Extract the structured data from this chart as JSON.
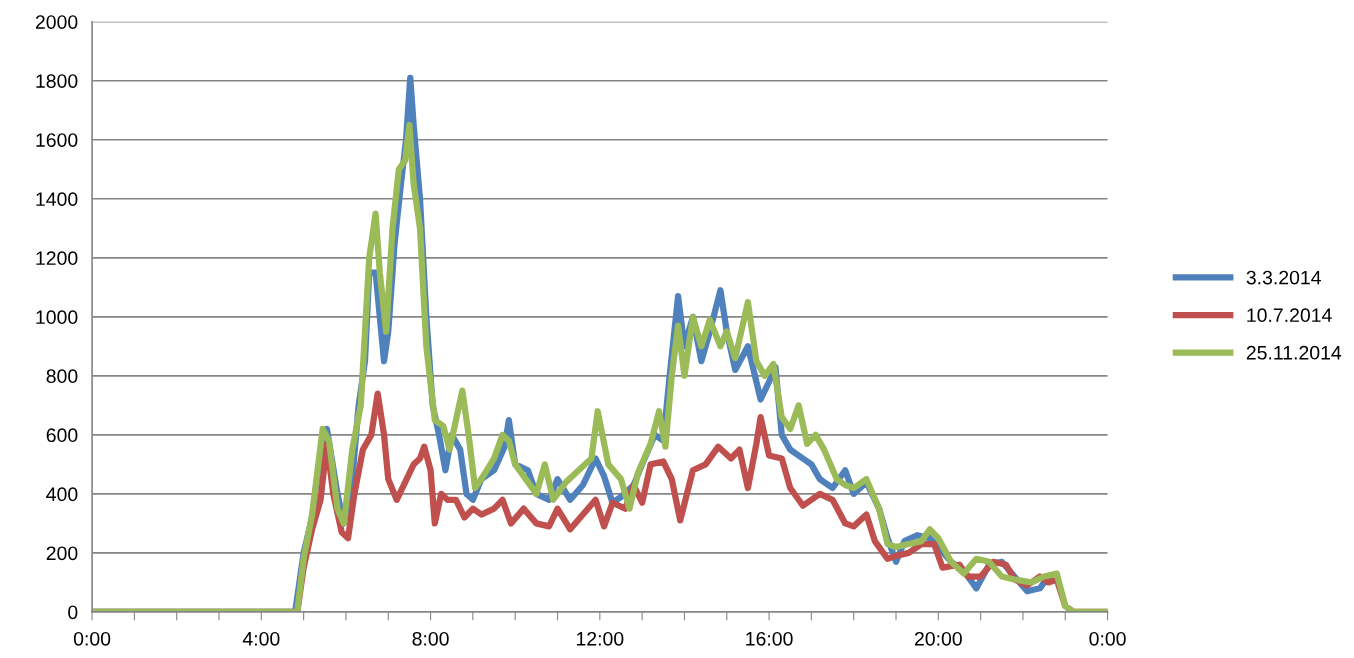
{
  "chart_data": {
    "type": "line",
    "xlim": [
      0,
      24
    ],
    "ylim": [
      0,
      2000
    ],
    "xticks": [
      {
        "value": 0,
        "label": "0:00"
      },
      {
        "value": 1,
        "label": null
      },
      {
        "value": 2,
        "label": null
      },
      {
        "value": 3,
        "label": null
      },
      {
        "value": 4,
        "label": "4:00"
      },
      {
        "value": 5,
        "label": null
      },
      {
        "value": 6,
        "label": null
      },
      {
        "value": 7,
        "label": null
      },
      {
        "value": 8,
        "label": "8:00"
      },
      {
        "value": 9,
        "label": null
      },
      {
        "value": 10,
        "label": null
      },
      {
        "value": 11,
        "label": null
      },
      {
        "value": 12,
        "label": "12:00"
      },
      {
        "value": 13,
        "label": null
      },
      {
        "value": 14,
        "label": null
      },
      {
        "value": 15,
        "label": null
      },
      {
        "value": 16,
        "label": "16:00"
      },
      {
        "value": 17,
        "label": null
      },
      {
        "value": 18,
        "label": null
      },
      {
        "value": 19,
        "label": null
      },
      {
        "value": 20,
        "label": "20:00"
      },
      {
        "value": 21,
        "label": null
      },
      {
        "value": 22,
        "label": null
      },
      {
        "value": 23,
        "label": null
      },
      {
        "value": 24,
        "label": "0:00"
      }
    ],
    "yticks": [
      0,
      200,
      400,
      600,
      800,
      1000,
      1200,
      1400,
      1600,
      1800,
      2000
    ],
    "grid": "y",
    "legend": "right",
    "marker": "none",
    "line_style": "solid",
    "series": [
      {
        "name": "3.3.2014",
        "color": "#4f81bd",
        "x": [
          0,
          4.8,
          5.0,
          5.2,
          5.45,
          5.55,
          5.8,
          5.95,
          6.15,
          6.3,
          6.45,
          6.55,
          6.7,
          6.8,
          6.9,
          7.0,
          7.15,
          7.3,
          7.42,
          7.52,
          7.6,
          7.75,
          7.9,
          8.05,
          8.2,
          8.35,
          8.5,
          8.7,
          8.85,
          9.0,
          9.2,
          9.5,
          9.75,
          9.85,
          10.0,
          10.3,
          10.5,
          10.8,
          11.0,
          11.3,
          11.6,
          11.9,
          12.1,
          12.3,
          12.5,
          12.8,
          13.0,
          13.3,
          13.5,
          13.65,
          13.85,
          14.0,
          14.2,
          14.4,
          14.6,
          14.85,
          15.0,
          15.2,
          15.5,
          15.8,
          16.0,
          16.15,
          16.3,
          16.5,
          16.8,
          17.0,
          17.2,
          17.5,
          17.8,
          18.0,
          18.3,
          18.6,
          18.8,
          19.0,
          19.2,
          19.5,
          19.8,
          20.0,
          20.3,
          20.6,
          20.9,
          21.2,
          21.5,
          21.8,
          22.1,
          22.4,
          22.6,
          22.8
        ],
        "values": [
          0,
          0,
          200,
          320,
          600,
          620,
          400,
          300,
          450,
          700,
          850,
          1150,
          1150,
          1000,
          850,
          950,
          1250,
          1450,
          1600,
          1810,
          1650,
          1400,
          1000,
          700,
          600,
          480,
          600,
          550,
          400,
          380,
          450,
          480,
          560,
          650,
          500,
          480,
          400,
          380,
          450,
          380,
          430,
          520,
          460,
          370,
          390,
          430,
          500,
          600,
          580,
          800,
          1070,
          900,
          1000,
          850,
          950,
          1090,
          950,
          820,
          900,
          720,
          780,
          830,
          600,
          550,
          520,
          500,
          450,
          420,
          480,
          400,
          440,
          350,
          250,
          170,
          240,
          260,
          250,
          220,
          170,
          140,
          80,
          160,
          170,
          120,
          70,
          80,
          120,
          120
        ]
      },
      {
        "name": "10.7.2014",
        "color": "#c0504d",
        "x": [
          0,
          4.85,
          5.0,
          5.2,
          5.4,
          5.55,
          5.7,
          5.9,
          6.05,
          6.2,
          6.4,
          6.6,
          6.75,
          6.9,
          7.0,
          7.2,
          7.4,
          7.6,
          7.75,
          7.85,
          8.0,
          8.1,
          8.25,
          8.4,
          8.6,
          8.8,
          9.0,
          9.2,
          9.5,
          9.7,
          9.9,
          10.2,
          10.5,
          10.8,
          11.0,
          11.3,
          11.6,
          11.9,
          12.1,
          12.3,
          12.6,
          12.8,
          13.0,
          13.2,
          13.5,
          13.7,
          13.9,
          14.2,
          14.5,
          14.8,
          15.1,
          15.3,
          15.5,
          15.7,
          15.8,
          16.0,
          16.3,
          16.5,
          16.8,
          17.0,
          17.2,
          17.5,
          17.8,
          18.0,
          18.3,
          18.5,
          18.8,
          19.0,
          19.3,
          19.6,
          19.9,
          20.1,
          20.5,
          20.7,
          21.0,
          21.3,
          21.6,
          21.8,
          22.1,
          22.4,
          22.6,
          22.8,
          23.0,
          23.2,
          24
        ],
        "values": [
          0,
          0,
          150,
          280,
          380,
          570,
          400,
          270,
          250,
          400,
          550,
          600,
          740,
          600,
          450,
          380,
          440,
          500,
          520,
          560,
          480,
          300,
          400,
          380,
          380,
          320,
          350,
          330,
          350,
          380,
          300,
          350,
          300,
          290,
          350,
          280,
          330,
          380,
          290,
          370,
          350,
          430,
          370,
          500,
          510,
          450,
          310,
          480,
          500,
          560,
          520,
          550,
          420,
          570,
          660,
          530,
          520,
          420,
          360,
          380,
          400,
          380,
          300,
          290,
          330,
          240,
          180,
          190,
          200,
          230,
          230,
          150,
          160,
          120,
          120,
          170,
          160,
          110,
          90,
          120,
          100,
          110,
          20,
          0,
          0
        ]
      },
      {
        "name": "25.11.2014",
        "color": "#9bbb59",
        "x": [
          0,
          4.85,
          5.0,
          5.2,
          5.45,
          5.6,
          5.8,
          5.95,
          6.15,
          6.35,
          6.55,
          6.7,
          6.8,
          6.95,
          7.1,
          7.25,
          7.4,
          7.5,
          7.6,
          7.75,
          7.9,
          8.1,
          8.3,
          8.45,
          8.6,
          8.75,
          8.9,
          9.05,
          9.2,
          9.5,
          9.7,
          9.85,
          10.0,
          10.2,
          10.5,
          10.7,
          10.9,
          11.2,
          11.5,
          11.8,
          11.95,
          12.2,
          12.5,
          12.7,
          12.9,
          13.2,
          13.4,
          13.55,
          13.7,
          13.85,
          14.0,
          14.2,
          14.4,
          14.6,
          14.85,
          15.0,
          15.2,
          15.5,
          15.7,
          15.9,
          16.1,
          16.3,
          16.5,
          16.7,
          16.9,
          17.1,
          17.3,
          17.6,
          17.8,
          18.0,
          18.3,
          18.6,
          18.8,
          19.0,
          19.3,
          19.6,
          19.8,
          20.0,
          20.3,
          20.6,
          20.9,
          21.2,
          21.5,
          21.8,
          22.2,
          22.5,
          22.8,
          23.0,
          23.2,
          24
        ],
        "values": [
          0,
          0,
          180,
          330,
          620,
          580,
          350,
          300,
          550,
          700,
          1200,
          1350,
          1150,
          950,
          1300,
          1500,
          1530,
          1650,
          1450,
          1300,
          900,
          650,
          630,
          550,
          650,
          750,
          600,
          420,
          450,
          520,
          600,
          580,
          500,
          460,
          400,
          500,
          380,
          440,
          480,
          520,
          680,
          500,
          450,
          350,
          470,
          570,
          680,
          560,
          800,
          970,
          800,
          1000,
          900,
          990,
          900,
          950,
          860,
          1050,
          850,
          800,
          840,
          660,
          620,
          700,
          570,
          600,
          550,
          450,
          430,
          420,
          450,
          350,
          230,
          220,
          230,
          240,
          280,
          250,
          170,
          130,
          180,
          170,
          120,
          110,
          100,
          120,
          130,
          20,
          0,
          0
        ]
      }
    ]
  }
}
